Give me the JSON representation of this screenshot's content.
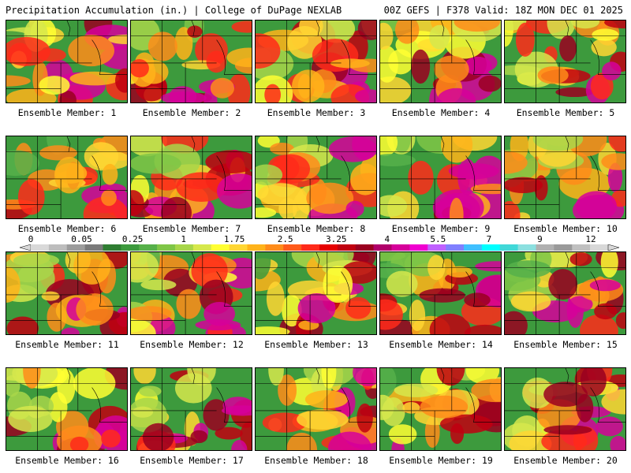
{
  "header": {
    "left": "Precipitation Accumulation (in.) | College of DuPage NEXLAB",
    "right": "00Z GEFS | F378 Valid: 18Z MON DEC 01 2025"
  },
  "panels": [
    {
      "label": "Ensemble Member: 1"
    },
    {
      "label": "Ensemble Member: 2"
    },
    {
      "label": "Ensemble Member: 3"
    },
    {
      "label": "Ensemble Member: 4"
    },
    {
      "label": "Ensemble Member: 5"
    },
    {
      "label": "Ensemble Member: 6"
    },
    {
      "label": "Ensemble Member: 7"
    },
    {
      "label": "Ensemble Member: 8"
    },
    {
      "label": "Ensemble Member: 9"
    },
    {
      "label": "Ensemble Member: 10"
    },
    {
      "label": "Ensemble Member: 11"
    },
    {
      "label": "Ensemble Member: 12"
    },
    {
      "label": "Ensemble Member: 13"
    },
    {
      "label": "Ensemble Member: 14"
    },
    {
      "label": "Ensemble Member: 15"
    },
    {
      "label": "Ensemble Member: 16"
    },
    {
      "label": "Ensemble Member: 17"
    },
    {
      "label": "Ensemble Member: 18"
    },
    {
      "label": "Ensemble Member: 19"
    },
    {
      "label": "Ensemble Member: 20"
    }
  ],
  "colorbar": {
    "ticks": [
      "0",
      "0.05",
      "0.25",
      "1",
      "1.75",
      "2.5",
      "3.25",
      "4",
      "5.5",
      "7",
      "9",
      "12"
    ],
    "colors": [
      "#d9d9d9",
      "#bdbdbd",
      "#9c9c9c",
      "#7a7a7a",
      "#2f7d32",
      "#3d9a3d",
      "#56b04a",
      "#7fc647",
      "#a8d64a",
      "#d6e84c",
      "#ffff33",
      "#ffd633",
      "#ffb31a",
      "#ff8c1a",
      "#ff5a1a",
      "#ff2a1a",
      "#e60000",
      "#c00010",
      "#9a0020",
      "#b0006a",
      "#d6009a",
      "#f000d0",
      "#c060ff",
      "#8080ff",
      "#40c0ff",
      "#00ffff",
      "#40d8d8",
      "#8ce0e0",
      "#b0b0b0",
      "#9a9a9a",
      "#c0c0c0",
      "#d8d8d8"
    ]
  }
}
